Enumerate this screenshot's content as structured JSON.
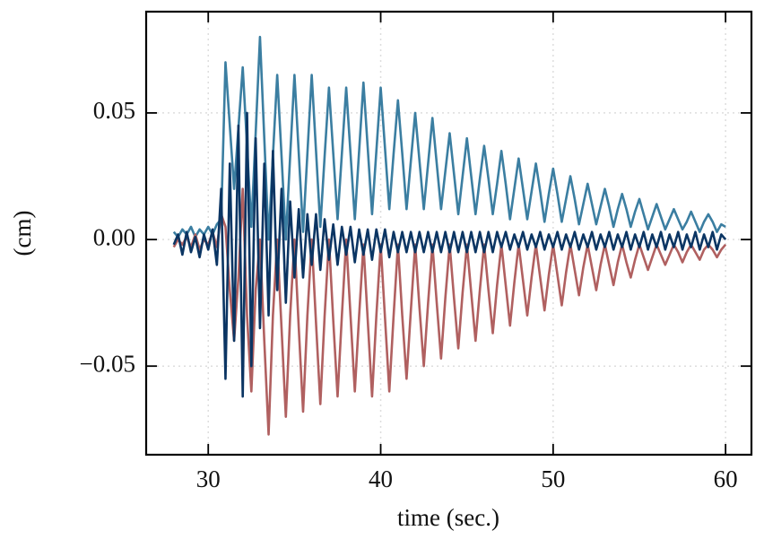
{
  "chart_data": {
    "type": "line",
    "xlabel": "time (sec.)",
    "ylabel": "(cm)",
    "xlim": [
      26.4,
      61.5
    ],
    "xticks": [
      30,
      40,
      50,
      60
    ],
    "ylim": [
      -0.085,
      0.09
    ],
    "yticks": [
      {
        "value": -0.05,
        "label": "−0.05"
      },
      {
        "value": 0,
        "label": "0.00"
      },
      0.05
    ],
    "grid": true,
    "x": [
      28,
      28.25,
      28.5,
      28.75,
      29,
      29.25,
      29.5,
      29.75,
      30,
      30.25,
      30.5,
      30.75,
      31,
      31.25,
      31.5,
      31.75,
      32,
      32.25,
      32.5,
      32.75,
      33,
      33.25,
      33.5,
      33.75,
      34,
      34.25,
      34.5,
      34.75,
      35,
      35.25,
      35.5,
      35.75,
      36,
      36.25,
      36.5,
      36.75,
      37,
      37.25,
      37.5,
      37.75,
      38,
      38.25,
      38.5,
      38.75,
      39,
      39.25,
      39.5,
      39.75,
      40,
      40.25,
      40.5,
      40.75,
      41,
      41.25,
      41.5,
      41.75,
      42,
      42.25,
      42.5,
      42.75,
      43,
      43.25,
      43.5,
      43.75,
      44,
      44.25,
      44.5,
      44.75,
      45,
      45.25,
      45.5,
      45.75,
      46,
      46.25,
      46.5,
      46.75,
      47,
      47.25,
      47.5,
      47.75,
      48,
      48.25,
      48.5,
      48.75,
      49,
      49.25,
      49.5,
      49.75,
      50,
      50.25,
      50.5,
      50.75,
      51,
      51.25,
      51.5,
      51.75,
      52,
      52.25,
      52.5,
      52.75,
      53,
      53.25,
      53.5,
      53.75,
      54,
      54.25,
      54.5,
      54.75,
      55,
      55.25,
      55.5,
      55.75,
      56,
      56.25,
      56.5,
      56.75,
      57,
      57.25,
      57.5,
      57.75,
      58,
      58.25,
      58.5,
      58.75,
      59,
      59.25,
      59.5,
      59.75,
      60
    ],
    "series": [
      {
        "color": "#3b7ea1",
        "values": [
          0.003,
          0.001,
          0.004,
          0.002,
          0.005,
          0.001,
          0.004,
          0.002,
          0.005,
          0.002,
          0.006,
          0.008,
          0.07,
          0.045,
          0.02,
          0.044,
          0.068,
          0.037,
          0.005,
          0.042,
          0.08,
          0.04,
          0.0,
          0.033,
          0.065,
          0.033,
          0.0,
          0.033,
          0.065,
          0.034,
          0.003,
          0.034,
          0.065,
          0.035,
          0.005,
          0.033,
          0.06,
          0.034,
          0.008,
          0.034,
          0.06,
          0.034,
          0.008,
          0.035,
          0.062,
          0.036,
          0.01,
          0.035,
          0.06,
          0.036,
          0.012,
          0.034,
          0.055,
          0.034,
          0.012,
          0.031,
          0.05,
          0.031,
          0.012,
          0.03,
          0.048,
          0.03,
          0.012,
          0.027,
          0.042,
          0.026,
          0.01,
          0.025,
          0.04,
          0.025,
          0.01,
          0.024,
          0.037,
          0.024,
          0.01,
          0.022,
          0.035,
          0.022,
          0.008,
          0.02,
          0.032,
          0.02,
          0.008,
          0.019,
          0.03,
          0.019,
          0.007,
          0.018,
          0.028,
          0.018,
          0.007,
          0.016,
          0.025,
          0.016,
          0.006,
          0.014,
          0.022,
          0.014,
          0.006,
          0.013,
          0.02,
          0.013,
          0.005,
          0.012,
          0.018,
          0.012,
          0.005,
          0.011,
          0.016,
          0.01,
          0.004,
          0.009,
          0.014,
          0.009,
          0.004,
          0.008,
          0.012,
          0.008,
          0.004,
          0.007,
          0.011,
          0.007,
          0.003,
          0.007,
          0.01,
          0.007,
          0.003,
          0.006,
          0.005
        ]
      },
      {
        "color": "#b06060",
        "values": [
          -0.003,
          0.0,
          -0.002,
          0.001,
          -0.003,
          0.002,
          -0.004,
          0.0,
          -0.002,
          0.003,
          -0.003,
          0.01,
          0.005,
          -0.02,
          -0.04,
          -0.015,
          0.02,
          -0.03,
          -0.06,
          -0.02,
          0.0,
          -0.04,
          -0.077,
          -0.03,
          0.0,
          -0.035,
          -0.07,
          -0.03,
          0.0,
          -0.035,
          -0.068,
          -0.03,
          0.0,
          -0.033,
          -0.065,
          -0.03,
          0.0,
          -0.032,
          -0.062,
          -0.03,
          0.0,
          -0.03,
          -0.06,
          -0.03,
          -0.002,
          -0.032,
          -0.062,
          -0.03,
          -0.002,
          -0.031,
          -0.06,
          -0.03,
          -0.002,
          -0.03,
          -0.055,
          -0.028,
          -0.002,
          -0.027,
          -0.05,
          -0.025,
          -0.002,
          -0.025,
          -0.047,
          -0.023,
          -0.002,
          -0.023,
          -0.043,
          -0.021,
          -0.002,
          -0.021,
          -0.04,
          -0.02,
          -0.002,
          -0.02,
          -0.037,
          -0.018,
          -0.002,
          -0.018,
          -0.034,
          -0.017,
          -0.002,
          -0.016,
          -0.03,
          -0.015,
          -0.002,
          -0.015,
          -0.028,
          -0.014,
          -0.002,
          -0.014,
          -0.026,
          -0.013,
          -0.002,
          -0.012,
          -0.022,
          -0.011,
          -0.002,
          -0.011,
          -0.02,
          -0.01,
          -0.002,
          -0.01,
          -0.018,
          -0.009,
          -0.002,
          -0.009,
          -0.015,
          -0.008,
          -0.002,
          -0.007,
          -0.012,
          -0.007,
          -0.002,
          -0.006,
          -0.01,
          -0.006,
          -0.002,
          -0.005,
          -0.009,
          -0.005,
          -0.002,
          -0.005,
          -0.008,
          -0.004,
          -0.002,
          -0.004,
          -0.007,
          -0.004,
          -0.002
        ]
      },
      {
        "color": "#0b3563",
        "values": [
          -0.002,
          0.002,
          -0.006,
          0.003,
          -0.005,
          0.001,
          -0.007,
          0.002,
          -0.004,
          0.004,
          -0.01,
          0.02,
          -0.055,
          0.03,
          -0.04,
          0.045,
          -0.062,
          0.05,
          -0.05,
          0.04,
          -0.035,
          0.03,
          -0.03,
          0.035,
          -0.02,
          0.02,
          -0.025,
          0.015,
          -0.015,
          0.012,
          -0.015,
          0.01,
          -0.01,
          0.01,
          -0.012,
          0.008,
          -0.008,
          0.006,
          -0.01,
          0.005,
          -0.006,
          0.005,
          -0.009,
          0.004,
          -0.006,
          0.004,
          -0.008,
          0.004,
          -0.005,
          0.004,
          -0.007,
          0.003,
          -0.005,
          0.003,
          -0.005,
          0.003,
          -0.005,
          0.003,
          -0.005,
          0.003,
          -0.005,
          0.003,
          -0.005,
          0.003,
          -0.005,
          0.003,
          -0.005,
          0.003,
          -0.005,
          0.003,
          -0.005,
          0.003,
          -0.005,
          0.003,
          -0.005,
          0.003,
          -0.003,
          0.003,
          -0.004,
          0.002,
          -0.003,
          0.003,
          -0.004,
          0.002,
          -0.003,
          0.003,
          -0.004,
          0.002,
          -0.003,
          0.003,
          -0.004,
          0.002,
          -0.003,
          0.003,
          -0.004,
          0.002,
          -0.003,
          0.003,
          -0.004,
          0.002,
          -0.003,
          0.003,
          -0.004,
          0.002,
          -0.003,
          0.003,
          -0.004,
          0.002,
          -0.003,
          0.003,
          -0.004,
          0.002,
          -0.003,
          0.003,
          -0.004,
          0.002,
          -0.003,
          0.003,
          -0.004,
          0.002,
          -0.003,
          0.003,
          -0.004,
          0.002,
          -0.003,
          0.003,
          -0.004,
          0.002,
          0.0
        ]
      }
    ]
  }
}
